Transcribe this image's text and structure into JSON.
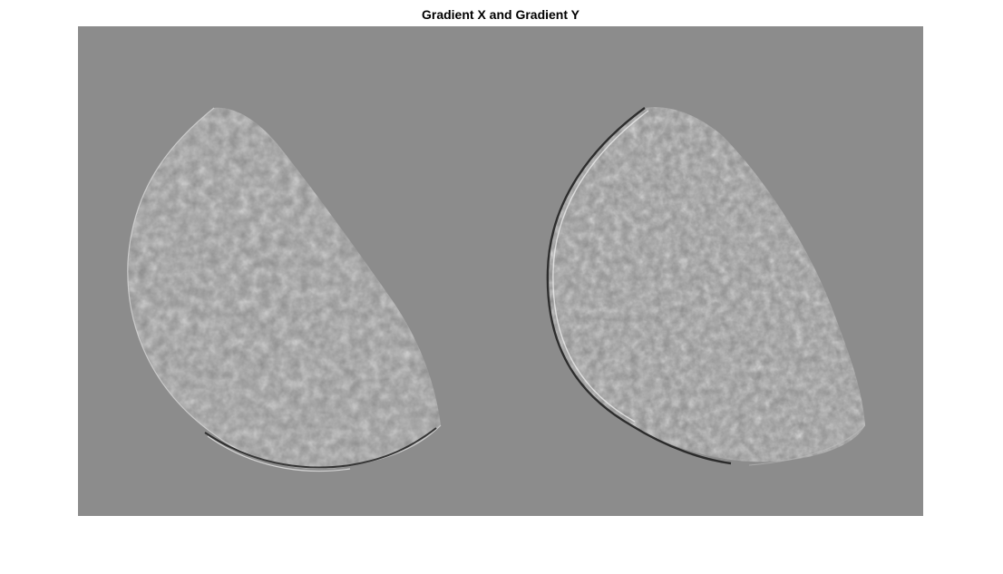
{
  "figure": {
    "title": "Gradient X and Gradient Y",
    "background_color": "#ffffff"
  },
  "image": {
    "neutral_gray": "#8c8c8c",
    "panels": [
      {
        "name": "gradient-x-moon",
        "edge_emphasis": "horizontal"
      },
      {
        "name": "gradient-y-moon",
        "edge_emphasis": "vertical"
      }
    ]
  }
}
